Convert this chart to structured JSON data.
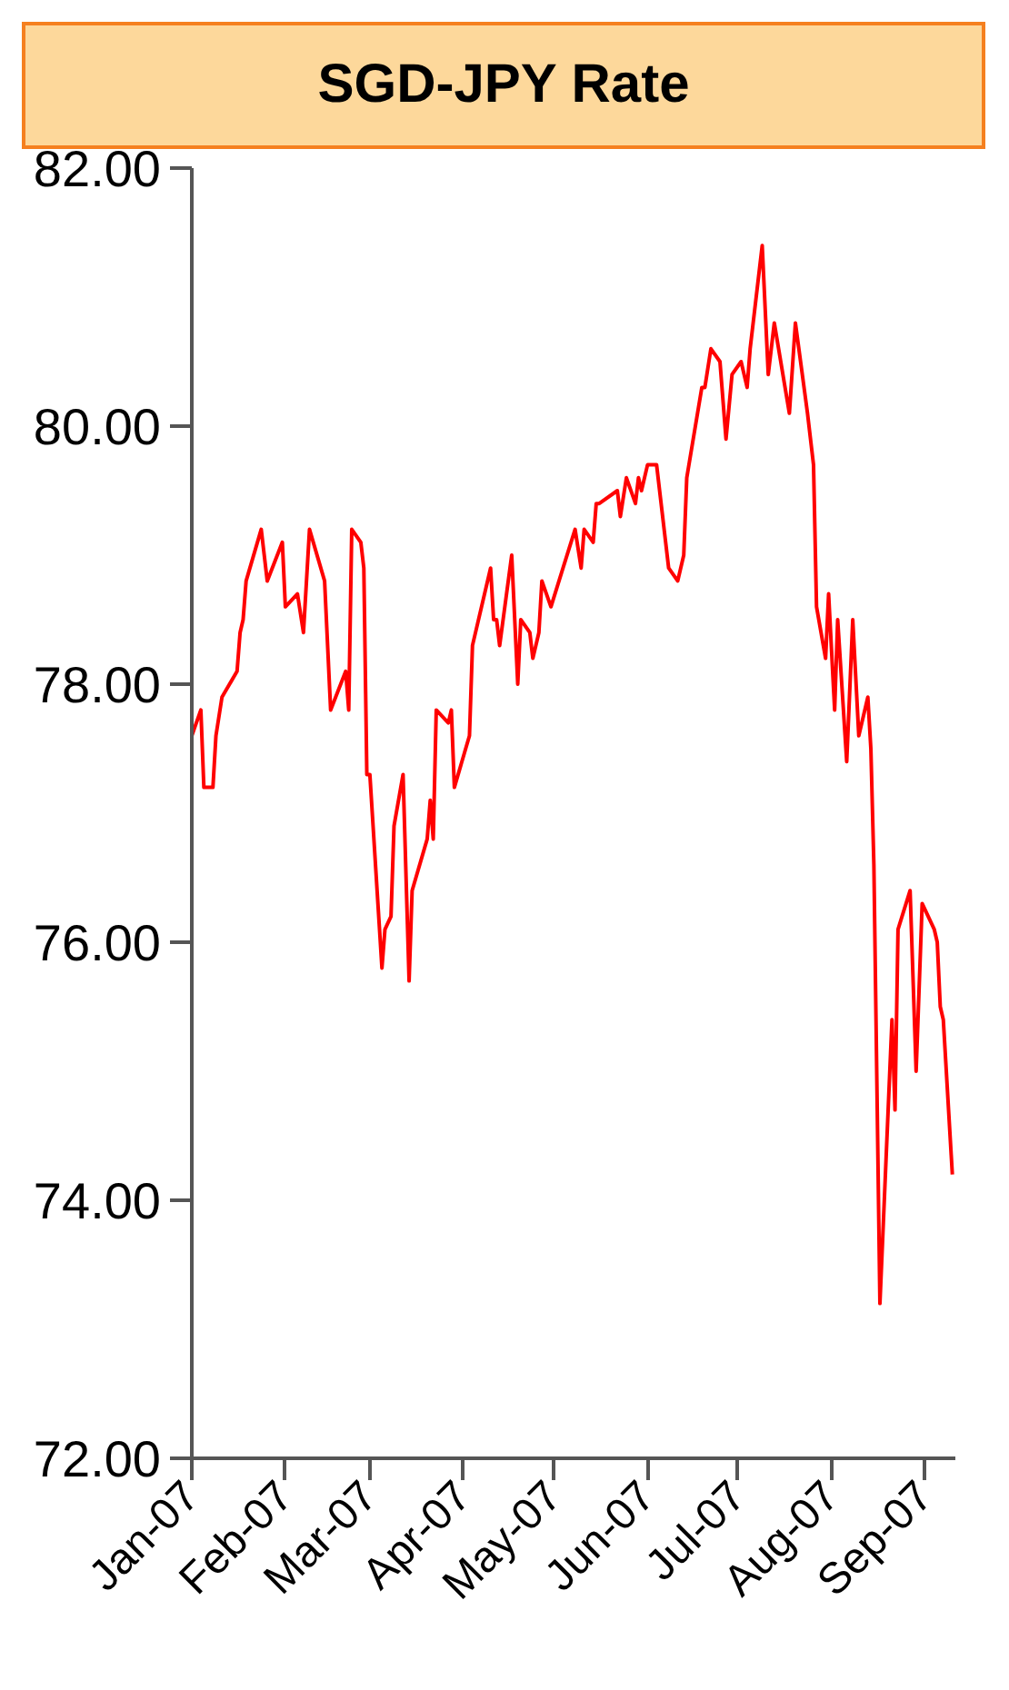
{
  "chart_data": {
    "type": "line",
    "title": "SGD-JPY Rate",
    "x": [
      "2007-01-01",
      "2007-01-04",
      "2007-01-05",
      "2007-01-08",
      "2007-01-09",
      "2007-01-11",
      "2007-01-16",
      "2007-01-17",
      "2007-01-18",
      "2007-01-19",
      "2007-01-24",
      "2007-01-26",
      "2007-01-31",
      "2007-02-01",
      "2007-02-05",
      "2007-02-07",
      "2007-02-09",
      "2007-02-14",
      "2007-02-16",
      "2007-02-21",
      "2007-02-22",
      "2007-02-23",
      "2007-02-26",
      "2007-02-27",
      "2007-02-28",
      "2007-03-01",
      "2007-03-05",
      "2007-03-06",
      "2007-03-08",
      "2007-03-09",
      "2007-03-12",
      "2007-03-14",
      "2007-03-15",
      "2007-03-20",
      "2007-03-21",
      "2007-03-22",
      "2007-03-23",
      "2007-03-27",
      "2007-03-28",
      "2007-03-29",
      "2007-04-03",
      "2007-04-04",
      "2007-04-10",
      "2007-04-11",
      "2007-04-12",
      "2007-04-13",
      "2007-04-17",
      "2007-04-19",
      "2007-04-20",
      "2007-04-23",
      "2007-04-24",
      "2007-04-26",
      "2007-04-27",
      "2007-04-30",
      "2007-05-04",
      "2007-05-08",
      "2007-05-10",
      "2007-05-11",
      "2007-05-14",
      "2007-05-15",
      "2007-05-16",
      "2007-05-22",
      "2007-05-23",
      "2007-05-25",
      "2007-05-28",
      "2007-05-29",
      "2007-05-30",
      "2007-06-01",
      "2007-06-04",
      "2007-06-07",
      "2007-06-08",
      "2007-06-11",
      "2007-06-13",
      "2007-06-14",
      "2007-06-19",
      "2007-06-20",
      "2007-06-22",
      "2007-06-25",
      "2007-06-27",
      "2007-06-29",
      "2007-07-02",
      "2007-07-04",
      "2007-07-05",
      "2007-07-09",
      "2007-07-11",
      "2007-07-13",
      "2007-07-18",
      "2007-07-20",
      "2007-07-24",
      "2007-07-26",
      "2007-07-27",
      "2007-07-30",
      "2007-07-31",
      "2007-08-02",
      "2007-08-03",
      "2007-08-06",
      "2007-08-08",
      "2007-08-10",
      "2007-08-13",
      "2007-08-14",
      "2007-08-15",
      "2007-08-17",
      "2007-08-21",
      "2007-08-22",
      "2007-08-23",
      "2007-08-27",
      "2007-08-29",
      "2007-08-31",
      "2007-09-04",
      "2007-09-05",
      "2007-09-06",
      "2007-09-07",
      "2007-09-10"
    ],
    "series": [
      {
        "color": "#ff0000",
        "values": [
          77.6,
          77.8,
          77.2,
          77.2,
          77.6,
          77.9,
          78.1,
          78.4,
          78.5,
          78.8,
          79.2,
          78.8,
          79.1,
          78.6,
          78.7,
          78.4,
          79.2,
          78.8,
          77.8,
          78.1,
          77.8,
          79.2,
          79.1,
          78.9,
          77.3,
          77.3,
          75.8,
          76.1,
          76.2,
          76.9,
          77.3,
          75.7,
          76.4,
          76.8,
          77.1,
          76.8,
          77.8,
          77.7,
          77.8,
          77.2,
          77.6,
          78.3,
          78.9,
          78.5,
          78.5,
          78.3,
          79.0,
          78.0,
          78.5,
          78.4,
          78.2,
          78.4,
          78.8,
          78.6,
          78.9,
          79.2,
          78.9,
          79.2,
          79.1,
          79.4,
          79.4,
          79.5,
          79.3,
          79.6,
          79.4,
          79.6,
          79.5,
          79.7,
          79.7,
          79.1,
          78.9,
          78.8,
          79.0,
          79.6,
          80.3,
          80.3,
          80.6,
          80.5,
          79.9,
          80.4,
          80.5,
          80.3,
          80.6,
          81.4,
          80.4,
          80.8,
          80.1,
          80.8,
          80.1,
          79.7,
          78.6,
          78.2,
          78.7,
          77.8,
          78.5,
          77.4,
          78.5,
          77.6,
          77.9,
          77.5,
          76.6,
          73.2,
          75.4,
          74.7,
          76.1,
          76.4,
          75.0,
          76.3,
          76.1,
          76.0,
          75.5,
          75.4,
          74.2
        ]
      }
    ],
    "xlim": [
      "2007-01-01",
      "2007-09-11"
    ],
    "xticks": [
      {
        "value": "2007-01-01",
        "label": "Jan-07"
      },
      {
        "value": "2007-02-01",
        "label": "Feb-07"
      },
      {
        "value": "2007-03-01",
        "label": "Mar-07"
      },
      {
        "value": "2007-04-01",
        "label": "Apr-07"
      },
      {
        "value": "2007-05-01",
        "label": "May-07"
      },
      {
        "value": "2007-06-01",
        "label": "Jun-07"
      },
      {
        "value": "2007-07-01",
        "label": "Jul-07"
      },
      {
        "value": "2007-08-01",
        "label": "Aug-07"
      },
      {
        "value": "2007-09-01",
        "label": "Sep-07"
      }
    ],
    "ylim": [
      72,
      82
    ],
    "yticks": [
      {
        "value": 72,
        "label": "72.00"
      },
      {
        "value": 74,
        "label": "74.00"
      },
      {
        "value": 76,
        "label": "76.00"
      },
      {
        "value": 78,
        "label": "78.00"
      },
      {
        "value": 80,
        "label": "80.00"
      },
      {
        "value": 82,
        "label": "82.00"
      }
    ],
    "grid": false,
    "line_style": "solid",
    "marker": "none"
  }
}
